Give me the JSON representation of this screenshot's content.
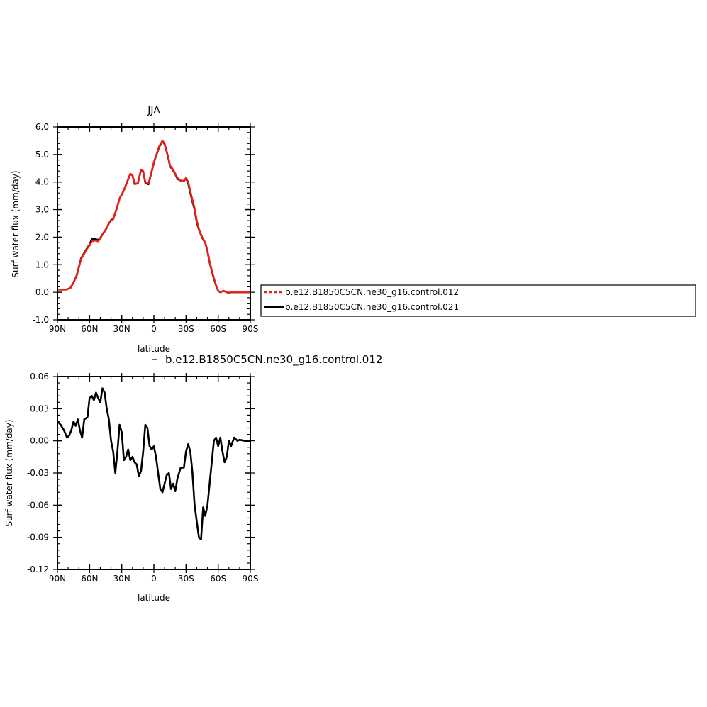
{
  "chart_data": [
    {
      "type": "line",
      "title": "JJA",
      "xlabel": "latitude",
      "ylabel": "Surf water flux (mm/day)",
      "xlim": [
        90,
        -90
      ],
      "ylim": [
        -1.0,
        6.0
      ],
      "xticks": [
        90,
        60,
        30,
        0,
        -30,
        -60,
        -90
      ],
      "xtick_labels": [
        "90N",
        "60N",
        "30N",
        "0",
        "30S",
        "60S",
        "90S"
      ],
      "yticks": [
        -1.0,
        0.0,
        1.0,
        2.0,
        3.0,
        4.0,
        5.0,
        6.0
      ],
      "ytick_labels": [
        "-1.0",
        "0.0",
        "1.0",
        "2.0",
        "3.0",
        "4.0",
        "5.0",
        "6.0"
      ],
      "legend_position": "right",
      "colors": {
        "series0": "#e8201a",
        "series1": "#000000"
      },
      "x": [
        90,
        85,
        82,
        78,
        75,
        72,
        70,
        68,
        65,
        62,
        60,
        58,
        55,
        52,
        50,
        48,
        45,
        42,
        40,
        38,
        35,
        32,
        30,
        28,
        25,
        22,
        20,
        18,
        15,
        12,
        10,
        8,
        5,
        2,
        0,
        -2,
        -5,
        -8,
        -10,
        -12,
        -14,
        -15,
        -18,
        -20,
        -22,
        -25,
        -28,
        -30,
        -32,
        -35,
        -38,
        -40,
        -42,
        -45,
        -48,
        -50,
        -52,
        -55,
        -58,
        -60,
        -62,
        -65,
        -68,
        -70,
        -72,
        -75,
        -78,
        -80,
        -85,
        -90
      ],
      "series": [
        {
          "name": "b.e12.B1850C5CN.ne30_g16.control.012",
          "values": [
            0.1,
            0.1,
            0.1,
            0.15,
            0.35,
            0.6,
            0.9,
            1.2,
            1.4,
            1.6,
            1.7,
            1.85,
            1.88,
            1.85,
            1.95,
            2.1,
            2.25,
            2.5,
            2.6,
            2.65,
            3.0,
            3.4,
            3.55,
            3.7,
            4.0,
            4.3,
            4.25,
            3.95,
            3.95,
            4.45,
            4.4,
            4.0,
            3.95,
            4.4,
            4.7,
            4.95,
            5.3,
            5.5,
            5.4,
            5.1,
            4.8,
            4.6,
            4.45,
            4.3,
            4.15,
            4.05,
            4.05,
            4.15,
            4.0,
            3.5,
            3.05,
            2.6,
            2.3,
            2.0,
            1.8,
            1.5,
            1.1,
            0.65,
            0.25,
            0.05,
            0.0,
            0.05,
            0.0,
            -0.02,
            0.0,
            0.0,
            0.0,
            0.0,
            0.0,
            0.0
          ]
        },
        {
          "name": "b.e12.B1850C5CN.ne30_g16.control.021",
          "values": [
            0.1,
            0.1,
            0.1,
            0.15,
            0.35,
            0.62,
            0.92,
            1.22,
            1.43,
            1.62,
            1.73,
            1.93,
            1.93,
            1.9,
            1.97,
            2.1,
            2.27,
            2.5,
            2.62,
            2.66,
            3.0,
            3.4,
            3.55,
            3.7,
            4.0,
            4.3,
            4.24,
            3.93,
            3.95,
            4.45,
            4.37,
            3.98,
            3.92,
            4.39,
            4.71,
            4.94,
            5.28,
            5.47,
            5.38,
            5.1,
            4.77,
            4.58,
            4.42,
            4.28,
            4.12,
            4.05,
            4.04,
            4.14,
            3.95,
            3.44,
            3.0,
            2.55,
            2.27,
            1.98,
            1.79,
            1.48,
            1.08,
            0.63,
            0.24,
            0.05,
            0.0,
            0.05,
            0.0,
            -0.02,
            0.0,
            0.0,
            0.0,
            0.0,
            0.0,
            0.0
          ]
        }
      ]
    },
    {
      "type": "line",
      "title": "b.e12.B1850C5CN.ne30_g16.control.012",
      "xlabel": "latitude",
      "ylabel": "Surf water flux (mm/day)",
      "xlim": [
        90,
        -90
      ],
      "ylim": [
        -0.12,
        0.06
      ],
      "xticks": [
        90,
        60,
        30,
        0,
        -30,
        -60,
        -90
      ],
      "xtick_labels": [
        "90N",
        "60N",
        "30N",
        "0",
        "30S",
        "60S",
        "90S"
      ],
      "yticks": [
        -0.12,
        -0.09,
        -0.06,
        -0.03,
        0.0,
        0.03,
        0.06
      ],
      "ytick_labels": [
        "-0.12",
        "-0.09",
        "-0.06",
        "-0.03",
        "0.00",
        "0.03",
        "0.06"
      ],
      "colors": {
        "series0": "#000000"
      },
      "x": [
        90,
        87,
        84,
        81,
        79,
        77,
        75,
        73,
        71,
        69,
        67,
        65,
        62,
        60,
        58,
        56,
        54,
        52,
        50,
        48,
        46,
        44,
        42,
        40,
        38,
        36,
        34,
        32,
        30,
        28,
        26,
        24,
        22,
        20,
        18,
        16,
        14,
        12,
        10,
        8,
        6,
        4,
        2,
        0,
        -2,
        -4,
        -6,
        -8,
        -10,
        -12,
        -14,
        -16,
        -18,
        -20,
        -22,
        -25,
        -28,
        -30,
        -32,
        -34,
        -36,
        -38,
        -40,
        -42,
        -44,
        -46,
        -48,
        -50,
        -52,
        -54,
        -56,
        -58,
        -60,
        -62,
        -64,
        -66,
        -68,
        -70,
        -72,
        -75,
        -78,
        -80,
        -85,
        -90
      ],
      "series": [
        {
          "name": "",
          "values": [
            0.018,
            0.015,
            0.01,
            0.003,
            0.005,
            0.01,
            0.018,
            0.014,
            0.02,
            0.01,
            0.003,
            0.02,
            0.022,
            0.04,
            0.042,
            0.038,
            0.045,
            0.04,
            0.036,
            0.049,
            0.045,
            0.03,
            0.02,
            0.0,
            -0.01,
            -0.03,
            -0.01,
            0.015,
            0.008,
            -0.018,
            -0.015,
            -0.008,
            -0.018,
            -0.015,
            -0.02,
            -0.022,
            -0.033,
            -0.028,
            -0.01,
            0.015,
            0.012,
            -0.005,
            -0.008,
            -0.005,
            -0.015,
            -0.03,
            -0.045,
            -0.048,
            -0.04,
            -0.032,
            -0.03,
            -0.045,
            -0.04,
            -0.047,
            -0.035,
            -0.025,
            -0.025,
            -0.01,
            -0.003,
            -0.01,
            -0.03,
            -0.06,
            -0.075,
            -0.09,
            -0.092,
            -0.062,
            -0.07,
            -0.06,
            -0.04,
            -0.02,
            0.0,
            0.003,
            -0.005,
            0.003,
            -0.01,
            -0.02,
            -0.015,
            0.0,
            -0.005,
            0.003,
            0.0,
            0.001,
            0.0,
            0.0
          ]
        }
      ]
    }
  ]
}
